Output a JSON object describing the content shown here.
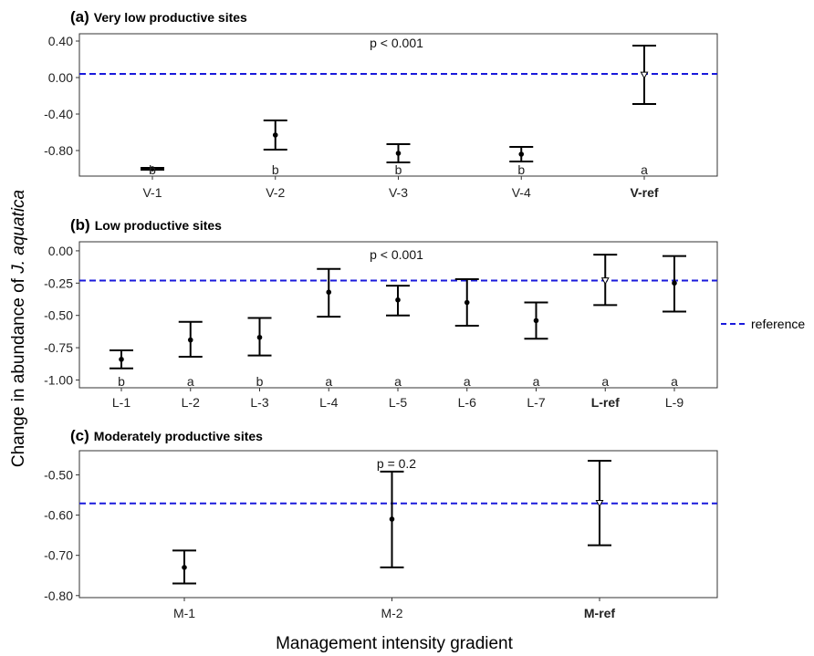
{
  "y_label_prefix": "Change in abundance of ",
  "y_label_species": "J. aquatica",
  "x_label": "Management intensity gradient",
  "legend_label": "reference",
  "colors": {
    "reference_line": "#1a1adb",
    "points": "#000000",
    "frame": "#333333"
  },
  "chart_data": [
    {
      "type": "scatter",
      "panel_tag": "(a)",
      "title": "Very low productive sites",
      "p_text": "p < 0.001",
      "categories": [
        "V-1",
        "V-2",
        "V-3",
        "V-4",
        "V-ref"
      ],
      "bold_category": "V-ref",
      "means": [
        -1.0,
        -0.63,
        -0.83,
        -0.84,
        0.03
      ],
      "lower": [
        -1.01,
        -0.79,
        -0.93,
        -0.92,
        -0.29
      ],
      "upper": [
        -0.99,
        -0.47,
        -0.73,
        -0.76,
        0.35
      ],
      "letters": [
        "b",
        "b",
        "b",
        "b",
        "a"
      ],
      "reference": 0.04,
      "ylim": [
        -1.08,
        0.48
      ],
      "yticks": [
        0.4,
        0.0,
        -0.4,
        -0.8
      ],
      "ytick_labels": [
        "0.40",
        "0.00",
        "-0.40",
        "-0.80"
      ],
      "grid": false
    },
    {
      "type": "scatter",
      "panel_tag": "(b)",
      "title": "Low productive sites",
      "p_text": "p < 0.001",
      "categories": [
        "L-1",
        "L-2",
        "L-3",
        "L-4",
        "L-5",
        "L-6",
        "L-7",
        "L-ref",
        "L-9"
      ],
      "bold_category": "L-ref",
      "means": [
        -0.84,
        -0.69,
        -0.67,
        -0.32,
        -0.38,
        -0.4,
        -0.54,
        -0.23,
        -0.25
      ],
      "lower": [
        -0.91,
        -0.82,
        -0.81,
        -0.51,
        -0.5,
        -0.58,
        -0.68,
        -0.42,
        -0.47
      ],
      "upper": [
        -0.77,
        -0.55,
        -0.52,
        -0.14,
        -0.27,
        -0.22,
        -0.4,
        -0.03,
        -0.04
      ],
      "letters": [
        "b",
        "a",
        "b",
        "a",
        "a",
        "a",
        "a",
        "a",
        "a"
      ],
      "reference": -0.23,
      "ylim": [
        -1.06,
        0.07
      ],
      "yticks": [
        0.0,
        -0.25,
        -0.5,
        -0.75,
        -1.0
      ],
      "ytick_labels": [
        "0.00",
        "-0.25",
        "-0.50",
        "-0.75",
        "-1.00"
      ],
      "grid": false
    },
    {
      "type": "scatter",
      "panel_tag": "(c)",
      "title": "Moderately productive sites",
      "p_text": "p = 0.2",
      "categories": [
        "M-1",
        "M-2",
        "M-ref"
      ],
      "bold_category": "M-ref",
      "means": [
        -0.73,
        -0.61,
        -0.57
      ],
      "lower": [
        -0.77,
        -0.73,
        -0.675
      ],
      "upper": [
        -0.688,
        -0.492,
        -0.465
      ],
      "letters": [
        "",
        "",
        ""
      ],
      "reference": -0.571,
      "ylim": [
        -0.805,
        -0.44
      ],
      "yticks": [
        -0.5,
        -0.6,
        -0.7,
        -0.8
      ],
      "ytick_labels": [
        "-0.50",
        "-0.60",
        "-0.70",
        "-0.80"
      ],
      "grid": false
    }
  ]
}
